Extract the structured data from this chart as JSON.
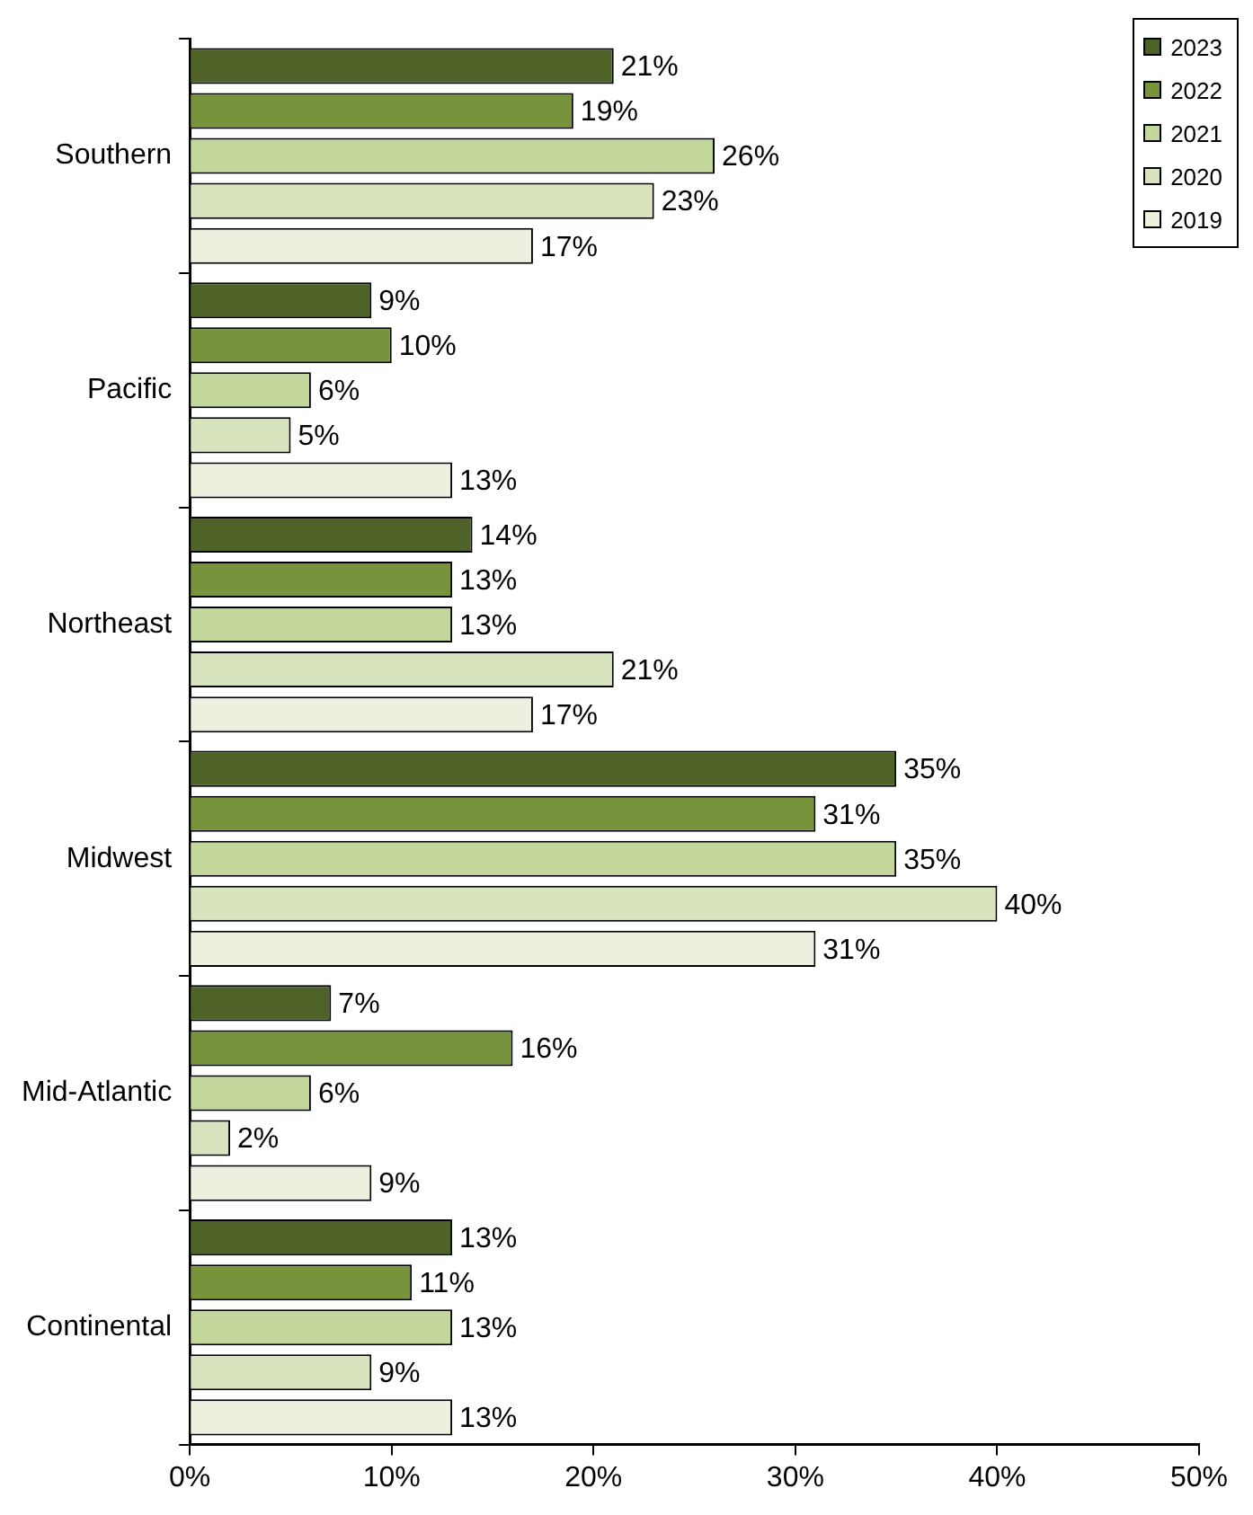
{
  "chart_data": {
    "type": "bar",
    "orientation": "horizontal",
    "categories": [
      "Southern",
      "Pacific",
      "Northeast",
      "Midwest",
      "Mid-Atlantic",
      "Continental"
    ],
    "series": [
      {
        "name": "2023",
        "color": "#4f6228",
        "values": [
          21,
          9,
          14,
          35,
          7,
          13
        ],
        "value_labels": [
          "21%",
          "9%",
          "14%",
          "35%",
          "7%",
          "13%"
        ]
      },
      {
        "name": "2022",
        "color": "#77933c",
        "values": [
          19,
          10,
          13,
          31,
          16,
          11
        ],
        "value_labels": [
          "19%",
          "10%",
          "13%",
          "31%",
          "16%",
          "11%"
        ]
      },
      {
        "name": "2021",
        "color": "#c3d69b",
        "values": [
          26,
          6,
          13,
          35,
          6,
          13
        ],
        "value_labels": [
          "26%",
          "6%",
          "13%",
          "35%",
          "6%",
          "13%"
        ]
      },
      {
        "name": "2020",
        "color": "#d7e4bd",
        "values": [
          23,
          5,
          21,
          40,
          2,
          9
        ],
        "value_labels": [
          "23%",
          "5%",
          "21%",
          "40%",
          "2%",
          "9%"
        ]
      },
      {
        "name": "2019",
        "color": "#ebf1de",
        "values": [
          17,
          13,
          17,
          31,
          9,
          13
        ],
        "value_labels": [
          "17%",
          "13%",
          "17%",
          "31%",
          "9%",
          "13%"
        ]
      }
    ],
    "xlim": [
      0,
      50
    ],
    "xticks": [
      {
        "value": 0,
        "label": "0%"
      },
      {
        "value": 10,
        "label": "10%"
      },
      {
        "value": 20,
        "label": "20%"
      },
      {
        "value": 30,
        "label": "30%"
      },
      {
        "value": 40,
        "label": "40%"
      },
      {
        "value": 50,
        "label": "50%"
      }
    ],
    "legend": "top right"
  }
}
